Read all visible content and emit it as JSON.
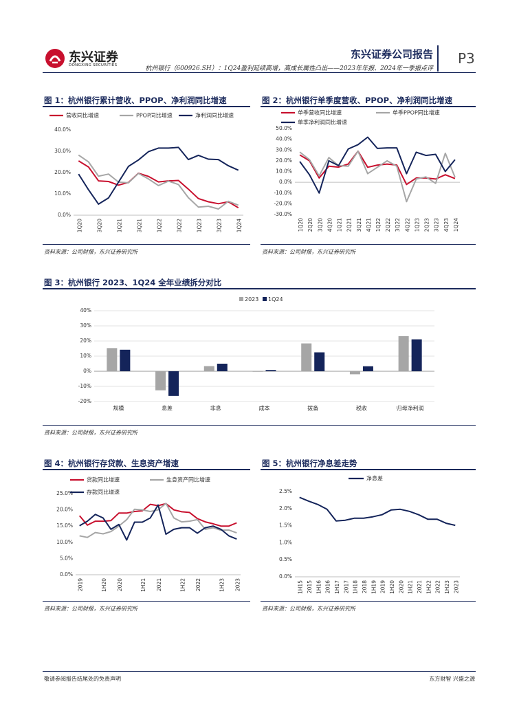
{
  "header": {
    "logo_cn": "东兴证券",
    "logo_en": "DONGXING SECURITIES",
    "company_report": "东兴证券公司报告",
    "subtitle": "杭州银行（600926.SH）：1Q24盈利延续高增，高成长属性凸出——2023年年报、2024年一季报点评",
    "page": "P3"
  },
  "colors": {
    "red": "#c8102e",
    "gray": "#a6a6a6",
    "navy": "#14245a"
  },
  "figures": {
    "f1": {
      "title": "图 1：杭州银行累计营收、PPOP、净利润同比增速",
      "source": "资料来源：公司财报，东兴证券研究所"
    },
    "f2": {
      "title": "图 2：杭州银行单季度营收、PPOP、净利润同比增速",
      "source": "资料来源：公司财报，东兴证券研究所"
    },
    "f3": {
      "title": "图 3：杭州银行 2023、1Q24 全年业绩拆分对比",
      "source": "资料来源：公司财报，东兴证券研究所"
    },
    "f4": {
      "title": "图 4：杭州银行存贷款、生息资产增速",
      "source": "资料来源：公司财报，东兴证券研究所"
    },
    "f5": {
      "title": "图 5：杭州银行净息差走势",
      "source": "资料来源：公司财报，东兴证券研究所"
    }
  },
  "footer": {
    "left": "敬请参阅报告结尾处的免责声明",
    "right": "东方财智  兴盛之源"
  },
  "chart_data": [
    {
      "id": "f1",
      "type": "line",
      "x": [
        "1Q20",
        "2Q20",
        "3Q20",
        "4Q20",
        "1Q21",
        "2Q21",
        "3Q21",
        "4Q21",
        "1Q22",
        "2Q22",
        "3Q22",
        "4Q22",
        "1Q23",
        "2Q23",
        "3Q23",
        "4Q23",
        "1Q24"
      ],
      "x_tick_labels": [
        "1Q20",
        "3Q20",
        "1Q21",
        "3Q21",
        "1Q22",
        "3Q22",
        "1Q23",
        "3Q23",
        "1Q24"
      ],
      "ylim": [
        0,
        40
      ],
      "yticks": [
        "0.0%",
        "10.0%",
        "20.0%",
        "30.0%",
        "40.0%"
      ],
      "series": [
        {
          "name": "营收同比增速",
          "color": "red",
          "values": [
            25.5,
            22.6,
            16.1,
            15.8,
            14.1,
            15.4,
            19.7,
            18.2,
            15.6,
            16.1,
            16.3,
            12.2,
            7.8,
            6.3,
            5.4,
            6.3,
            3.5
          ]
        },
        {
          "name": "PPOP同比增速",
          "color": "gray",
          "values": [
            28.2,
            25.0,
            18.3,
            19.3,
            15.5,
            15.2,
            19.6,
            17.0,
            13.9,
            16.0,
            14.4,
            8.2,
            3.8,
            4.2,
            2.9,
            6.5,
            4.7
          ]
        },
        {
          "name": "净利润同比增速",
          "color": "navy",
          "values": [
            19.3,
            11.9,
            5.2,
            8.1,
            15.5,
            22.9,
            25.9,
            29.8,
            31.5,
            31.5,
            31.8,
            26.1,
            28.1,
            26.3,
            26.1,
            23.2,
            21.1
          ]
        }
      ]
    },
    {
      "id": "f2",
      "type": "line",
      "x": [
        "1Q20",
        "2Q20",
        "3Q20",
        "4Q20",
        "1Q21",
        "2Q21",
        "3Q21",
        "4Q21",
        "1Q22",
        "2Q22",
        "3Q22",
        "4Q22",
        "1Q23",
        "2Q23",
        "3Q23",
        "4Q23",
        "1Q24"
      ],
      "x_tick_labels": [
        "1Q20",
        "2Q20",
        "3Q20",
        "4Q20",
        "1Q21",
        "2Q21",
        "3Q21",
        "4Q21",
        "1Q22",
        "2Q22",
        "3Q22",
        "4Q22",
        "1Q23",
        "2Q23",
        "3Q23",
        "4Q23",
        "1Q24"
      ],
      "ylim": [
        -30,
        50
      ],
      "yticks": [
        "-30.0%",
        "-20.0%",
        "-10.0%",
        "0.0%",
        "10.0%",
        "20.0%",
        "30.0%",
        "40.0%",
        "50.0%"
      ],
      "series": [
        {
          "name": "单季营收同比增速",
          "color": "red",
          "values": [
            25.5,
            20.0,
            4.0,
            15.0,
            14.1,
            17.0,
            29.0,
            14.0,
            16.0,
            17.0,
            16.0,
            -2.0,
            4.0,
            4.0,
            3.0,
            7.0,
            3.5
          ]
        },
        {
          "name": "单季PPOP同比增速",
          "color": "gray",
          "values": [
            28.2,
            21.0,
            6.0,
            23.0,
            15.5,
            15.0,
            29.0,
            8.0,
            14.0,
            20.0,
            15.0,
            -18.0,
            3.0,
            5.0,
            -1.0,
            27.0,
            4.7
          ]
        },
        {
          "name": "单季净利润同比增速",
          "color": "navy",
          "values": [
            19.3,
            7.0,
            -10.0,
            20.0,
            15.5,
            31.0,
            35.0,
            42.0,
            31.5,
            32.0,
            32.0,
            8.0,
            28.0,
            25.0,
            26.0,
            10.0,
            21.1
          ]
        }
      ]
    },
    {
      "id": "f3",
      "type": "bar",
      "categories": [
        "规模",
        "息差",
        "非息",
        "成本",
        "拨备",
        "税收",
        "归母净利润"
      ],
      "ylim": [
        -20,
        40
      ],
      "yticks": [
        "-20%",
        "-10%",
        "0%",
        "10%",
        "20%",
        "30%",
        "40%"
      ],
      "series": [
        {
          "name": "2023",
          "color": "gray",
          "values": [
            15.3,
            -12.6,
            3.4,
            0.0,
            18.4,
            -2.0,
            23.2
          ]
        },
        {
          "name": "1Q24",
          "color": "navy",
          "values": [
            14.2,
            -16.3,
            5.0,
            0.8,
            12.5,
            3.3,
            21.1
          ]
        }
      ]
    },
    {
      "id": "f4",
      "type": "line",
      "x": [
        "2019",
        "1Q19",
        "1H19",
        "3Q19",
        "2019b",
        "1Q20",
        "1H20",
        "3Q20",
        "2020",
        "1Q21",
        "1H21",
        "3Q21",
        "2021",
        "1Q22",
        "1H22",
        "3Q22",
        "2022",
        "1Q23",
        "1H23",
        "3Q23",
        "2023"
      ],
      "x_tick_labels": [
        "2019",
        "1H20",
        "2020",
        "1H21",
        "2021",
        "1H22",
        "2022",
        "1H23",
        "2023"
      ],
      "ylim": [
        0,
        25
      ],
      "yticks": [
        "0.0%",
        "5.0%",
        "10.0%",
        "15.0%",
        "20.0%",
        "25.0%"
      ],
      "series": [
        {
          "name": "贷款同比增速",
          "color": "red",
          "values": [
            18.2,
            15.3,
            16.5,
            16.5,
            16.7,
            19.0,
            19.0,
            19.5,
            19.7,
            21.7,
            21.3,
            21.9,
            20.0,
            19.4,
            19.2,
            17.3,
            16.3,
            15.7,
            15.0,
            15.0,
            16.0
          ]
        },
        {
          "name": "生息资产同比增速",
          "color": "gray",
          "values": [
            12.0,
            11.5,
            13.0,
            12.6,
            13.3,
            15.0,
            17.0,
            20.2,
            20.0,
            19.5,
            20.0,
            22.0,
            17.5,
            16.3,
            16.5,
            17.0,
            14.0,
            14.5,
            13.7,
            13.8,
            12.9
          ]
        },
        {
          "name": "存款同比增速",
          "color": "navy",
          "values": [
            15.1,
            16.5,
            18.6,
            17.5,
            14.0,
            15.5,
            10.7,
            16.2,
            16.2,
            17.5,
            21.5,
            12.5,
            14.0,
            14.5,
            14.5,
            12.8,
            14.5,
            15.0,
            14.0,
            12.0,
            11.0
          ]
        }
      ]
    },
    {
      "id": "f5",
      "type": "line",
      "x": [
        "1H15",
        "2015",
        "1H16",
        "2016",
        "1H17",
        "2017",
        "1H18",
        "2018",
        "1H19",
        "2019",
        "1H20",
        "2020",
        "1H21",
        "2021",
        "1H22",
        "2022",
        "1H23",
        "2023"
      ],
      "ylim": [
        0,
        2.5
      ],
      "yticks": [
        "0.0%",
        "0.5%",
        "1.0%",
        "1.5%",
        "2.0%",
        "2.5%"
      ],
      "series": [
        {
          "name": "净息差",
          "color": "navy",
          "values": [
            2.33,
            2.22,
            2.12,
            1.98,
            1.64,
            1.66,
            1.72,
            1.72,
            1.76,
            1.82,
            1.96,
            1.98,
            1.92,
            1.82,
            1.69,
            1.69,
            1.57,
            1.51
          ]
        }
      ]
    }
  ]
}
